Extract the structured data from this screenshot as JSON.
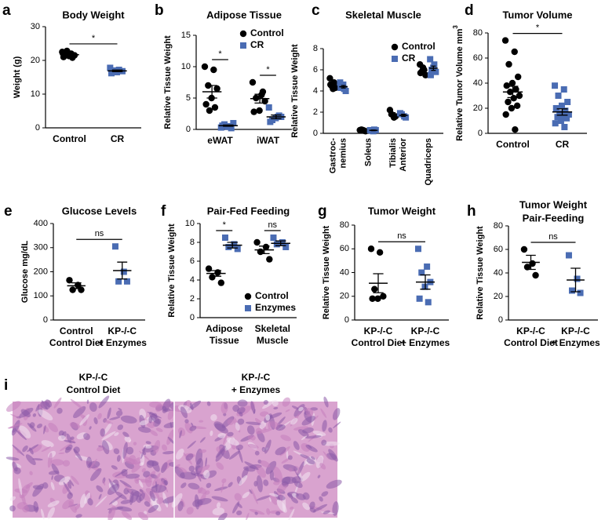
{
  "chart_data": [
    {
      "type": "dot",
      "letter": "a",
      "title": "Body Weight",
      "y_label": "Weight (g)",
      "categories": [
        [
          "Control"
        ],
        [
          "CR"
        ]
      ],
      "series": [
        {
          "color": "#000000",
          "marker": "circle",
          "values": [
            [
              22.5,
              22,
              21.8,
              21.5,
              21.3,
              21,
              20.8,
              22.8
            ],
            null
          ],
          "mean": [
            21.7,
            null
          ],
          "sem": [
            0.3,
            null
          ]
        },
        {
          "color": "#4a6cb3",
          "marker": "square",
          "values": [
            null,
            [
              17.8,
              17.2,
              17,
              16.8,
              16.5,
              16.2
            ]
          ],
          "mean": [
            null,
            16.9
          ],
          "sem": [
            null,
            0.25
          ]
        }
      ],
      "ylim": [
        0,
        30
      ],
      "yticks": [
        0,
        10,
        20,
        30
      ],
      "annotations": [
        {
          "text": "*"
        }
      ]
    },
    {
      "type": "dot",
      "letter": "b",
      "title": "Adipose Tissue",
      "y_label": "Relative Tissue Weight",
      "categories": [
        [
          "eWAT"
        ],
        [
          "iWAT"
        ]
      ],
      "series": [
        {
          "name": "Control",
          "color": "#000000",
          "marker": "circle",
          "values": [
            [
              10,
              9.5,
              7,
              6.5,
              5,
              4,
              3.5,
              3
            ],
            [
              7.5,
              5.5,
              5,
              4.5,
              3,
              2.8,
              6
            ]
          ],
          "mean": [
            6,
            4.9
          ],
          "sem": [
            1,
            0.7
          ]
        },
        {
          "name": "CR",
          "color": "#4a6cb3",
          "marker": "square",
          "values": [
            [
              0.3,
              0.5,
              0.8,
              1,
              0.4,
              0.6,
              0.2
            ],
            [
              3.5,
              2,
              1.5,
              2,
              1.8,
              1.2,
              2.2
            ]
          ],
          "mean": [
            0.6,
            2
          ],
          "sem": [
            0.1,
            0.3
          ]
        }
      ],
      "ylim": [
        0,
        15
      ],
      "yticks": [
        0,
        5,
        10,
        15
      ],
      "legend": "upper right",
      "annotations": [
        {
          "text": "*",
          "category": 0
        },
        {
          "text": "*",
          "category": 1
        }
      ]
    },
    {
      "type": "dot",
      "letter": "c",
      "title": "Skeletal Muscle",
      "y_label": "Relative Tissue Weight",
      "rotate_labels": true,
      "categories": [
        [
          "Gastroc-",
          "nemius"
        ],
        [
          "Soleus"
        ],
        [
          "Tibialis",
          "Anterior"
        ],
        [
          "Quadriceps"
        ]
      ],
      "series": [
        {
          "name": "Control",
          "color": "#000000",
          "marker": "circle",
          "values": [
            [
              5.2,
              4.8,
              4.5,
              4.3,
              4.2,
              4.6,
              4.4
            ],
            [
              0.3,
              0.25,
              0.35,
              0.2,
              0.3
            ],
            [
              2.2,
              1.5,
              1.8,
              1.6
            ],
            [
              6.5,
              6,
              5.8,
              5.5,
              6.2,
              5.7
            ]
          ],
          "mean": [
            4.6,
            0.28,
            1.8,
            5.95
          ],
          "sem": [
            0.12,
            0.03,
            0.15,
            0.15
          ]
        },
        {
          "name": "CR",
          "color": "#4a6cb3",
          "marker": "square",
          "values": [
            [
              4.8,
              4.2,
              4.5,
              4,
              4.6,
              4.3
            ],
            [
              0.3,
              0.35,
              0.25,
              0.3,
              0.2
            ],
            [
              1.9,
              1.6,
              1.8,
              1.5
            ],
            [
              7,
              6.5,
              6,
              5.8,
              6.2,
              5.5
            ]
          ],
          "mean": [
            4.4,
            0.28,
            1.7,
            6.15
          ],
          "sem": [
            0.12,
            0.03,
            0.1,
            0.2
          ]
        }
      ],
      "ylim": [
        0,
        8
      ],
      "yticks": [
        0,
        2,
        4,
        6,
        8
      ],
      "legend": "upper right"
    },
    {
      "type": "dot",
      "letter": "d",
      "title": "Tumor Volume",
      "y_label": "Relative Tumor Volume mm",
      "y_label_sup": "3",
      "categories": [
        [
          "Control"
        ],
        [
          "CR"
        ]
      ],
      "series": [
        {
          "color": "#000000",
          "marker": "circle",
          "values": [
            [
              74,
              65,
              55,
              45,
              40,
              38,
              35,
              33,
              30,
              28,
              25,
              22,
              20,
              15,
              3
            ],
            null
          ],
          "mean": [
            33,
            null
          ],
          "sem": [
            4.5,
            null
          ]
        },
        {
          "color": "#4a6cb3",
          "marker": "square",
          "values": [
            null,
            [
              38,
              35,
              30,
              25,
              22,
              20,
              18,
              16,
              15,
              14,
              13,
              12,
              10,
              8,
              5
            ]
          ],
          "mean": [
            null,
            17
          ],
          "sem": [
            null,
            2.5
          ]
        }
      ],
      "ylim": [
        0,
        80
      ],
      "yticks": [
        0,
        20,
        40,
        60,
        80
      ],
      "annotations": [
        {
          "text": "*"
        }
      ]
    },
    {
      "type": "dot",
      "letter": "e",
      "title": "Glucose Levels",
      "y_label": "Glucose mg/dL",
      "categories": [
        [
          "Control",
          "Control Diet"
        ],
        [
          "KP-/-C",
          "+ Enzymes"
        ]
      ],
      "series": [
        {
          "color": "#000000",
          "marker": "circle",
          "values": [
            [
              165,
              145,
              125,
              125
            ],
            null
          ],
          "mean": [
            142,
            null
          ],
          "sem": [
            12,
            null
          ]
        },
        {
          "color": "#4a6cb3",
          "marker": "square",
          "values": [
            null,
            [
              305,
              200,
              160,
              160
            ]
          ],
          "mean": [
            null,
            205
          ],
          "sem": [
            null,
            35
          ]
        }
      ],
      "ylim": [
        0,
        400
      ],
      "yticks": [
        0,
        100,
        200,
        300,
        400
      ],
      "annotations": [
        {
          "text": "ns"
        }
      ]
    },
    {
      "type": "dot",
      "letter": "f",
      "title": "Pair-Fed Feeding",
      "y_label": "Relative Tissue Weight",
      "categories": [
        [
          "Adipose",
          "Tissue"
        ],
        [
          "Skeletal",
          "Muscle"
        ]
      ],
      "series": [
        {
          "name": "Control",
          "color": "#000000",
          "marker": "circle",
          "values": [
            [
              5.2,
              4.8,
              4.3,
              3.7
            ],
            [
              8,
              7.5,
              7,
              6.2
            ]
          ],
          "mean": [
            4.7,
            7.2
          ],
          "sem": [
            0.3,
            0.4
          ]
        },
        {
          "name": "Enzymes",
          "color": "#4a6cb3",
          "marker": "square",
          "values": [
            [
              8.5,
              7.8,
              7.5,
              7.3
            ],
            [
              8.5,
              8,
              7.8,
              7.5
            ]
          ],
          "mean": [
            7.7,
            7.9
          ],
          "sem": [
            0.3,
            0.25
          ]
        }
      ],
      "ylim": [
        0,
        10
      ],
      "yticks": [
        0,
        2,
        4,
        6,
        8,
        10
      ],
      "legend": "lower right",
      "annotations": [
        {
          "text": "*",
          "category": 0
        },
        {
          "text": "ns",
          "category": 1
        }
      ]
    },
    {
      "type": "dot",
      "letter": "g",
      "title": "Tumor Weight",
      "y_label": "Relative Tissue Weight",
      "categories": [
        [
          "KP-/-C",
          "Control Diet"
        ],
        [
          "KP-/-C",
          "+ Enzymes"
        ]
      ],
      "series": [
        {
          "color": "#000000",
          "marker": "circle",
          "values": [
            [
              60,
              57,
              26,
              20,
              18,
              18
            ],
            null
          ],
          "mean": [
            31,
            null
          ],
          "sem": [
            8,
            null
          ]
        },
        {
          "color": "#4a6cb3",
          "marker": "square",
          "values": [
            null,
            [
              60,
              45,
              40,
              32,
              28,
              18,
              15
            ]
          ],
          "mean": [
            null,
            32
          ],
          "sem": [
            null,
            6
          ]
        }
      ],
      "ylim": [
        0,
        80
      ],
      "yticks": [
        0,
        20,
        40,
        60,
        80
      ],
      "annotations": [
        {
          "text": "ns"
        }
      ]
    },
    {
      "type": "dot",
      "letter": "h",
      "title": [
        "Tumor Weight",
        "Pair-Feeding"
      ],
      "y_label": "Relative Tissue Weight",
      "categories": [
        [
          "KP-/-C",
          "Control Diet"
        ],
        [
          "KP-/-C",
          "+ Enzymes"
        ]
      ],
      "series": [
        {
          "color": "#000000",
          "marker": "circle",
          "values": [
            [
              60,
              48,
              45,
              38
            ],
            null
          ],
          "mean": [
            49,
            null
          ],
          "sem": [
            6,
            null
          ]
        },
        {
          "color": "#4a6cb3",
          "marker": "square",
          "values": [
            null,
            [
              55,
              35,
              25,
              23
            ]
          ],
          "mean": [
            null,
            34
          ],
          "sem": [
            null,
            10
          ]
        }
      ],
      "ylim": [
        0,
        80
      ],
      "yticks": [
        0,
        20,
        40,
        60,
        80
      ],
      "annotations": [
        {
          "text": "ns"
        }
      ]
    },
    {
      "type": "image",
      "letter": "i",
      "labels": [
        [
          "KP-/-C",
          "Control Diet"
        ],
        [
          "KP-/-C",
          "+ Enzymes"
        ]
      ]
    }
  ]
}
